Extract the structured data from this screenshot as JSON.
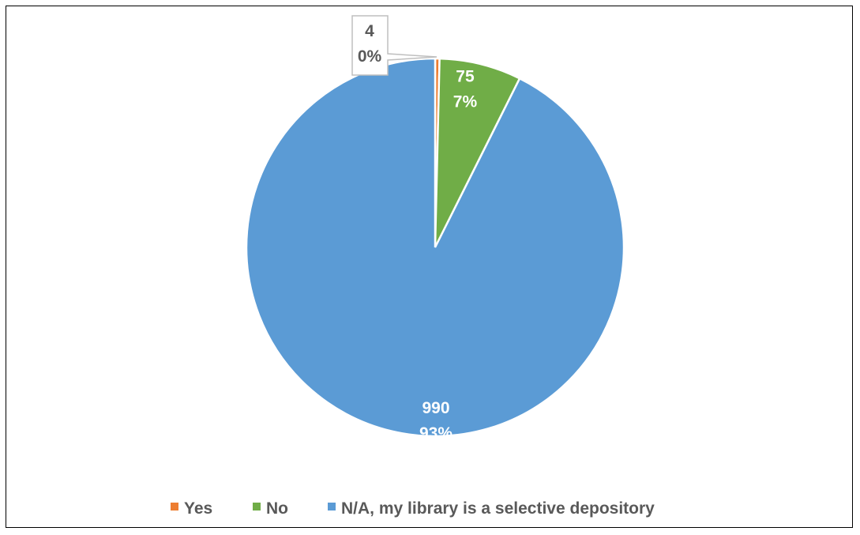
{
  "chart_data": {
    "type": "pie",
    "categories": [
      "Yes",
      "No",
      "N/A, my library is a selective depository"
    ],
    "values": [
      4,
      75,
      990
    ],
    "percent_labels": [
      "0%",
      "7%",
      "93%"
    ],
    "colors": [
      "#ED7D31",
      "#70AD47",
      "#5B9BD5"
    ],
    "legend_position": "bottom",
    "title": ""
  }
}
